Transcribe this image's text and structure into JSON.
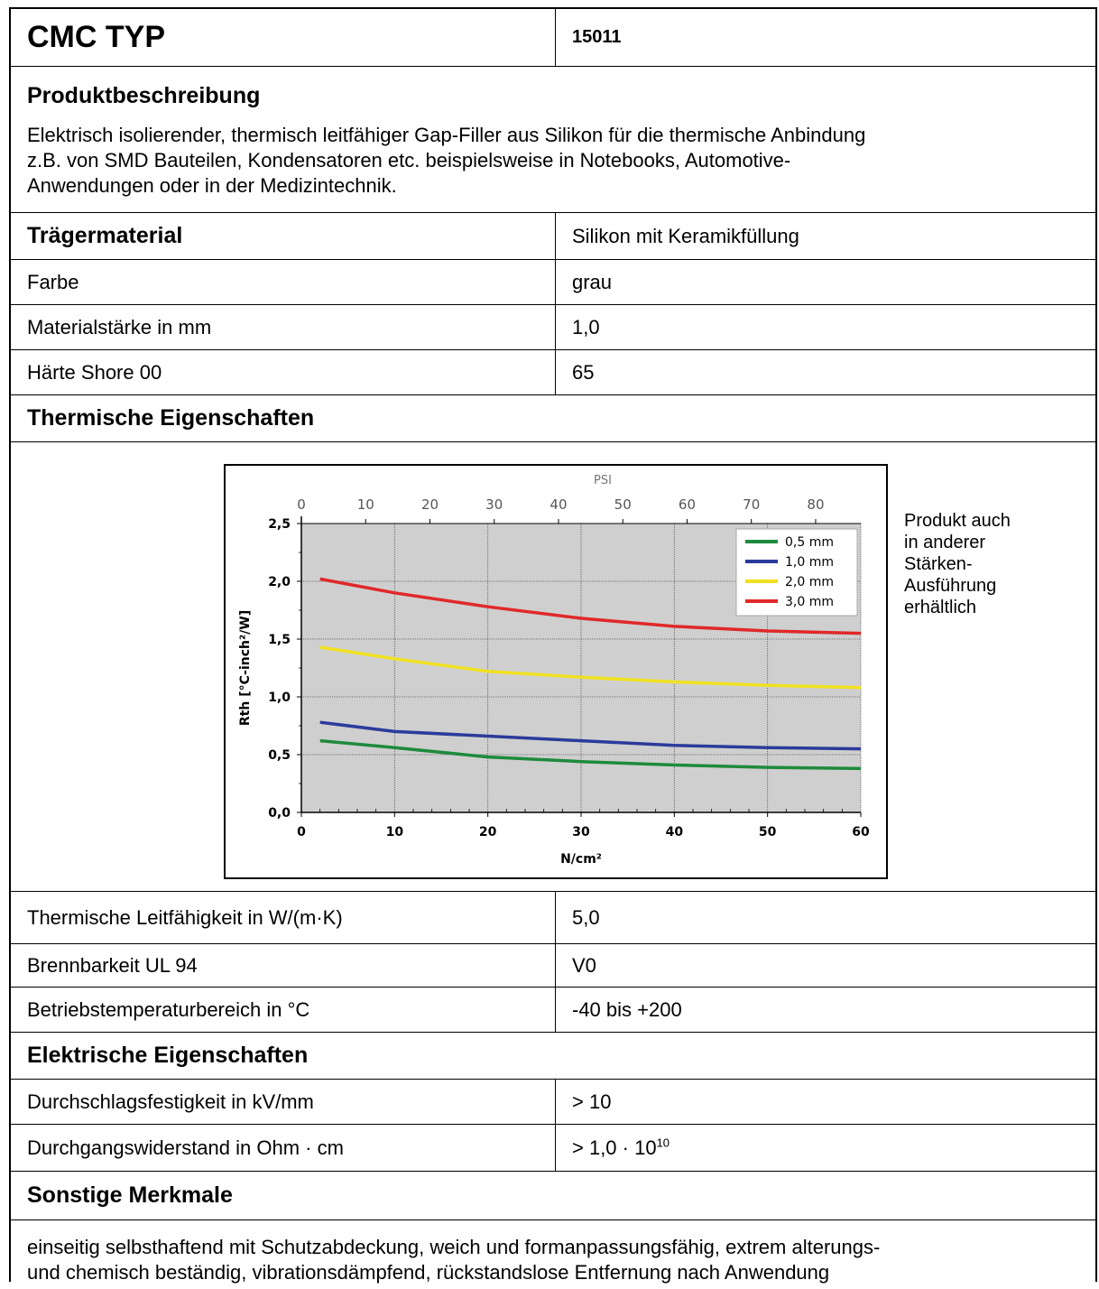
{
  "header": {
    "title": "CMC TYP",
    "code": "15011"
  },
  "product": {
    "heading": "Produktbeschreibung",
    "lines": [
      "Elektrisch isolierender, thermisch leitfähiger Gap-Filler aus Silikon für die thermische Anbindung",
      "z.B. von SMD Bauteilen, Kondensatoren etc. beispielsweise in Notebooks, Automotive-",
      "Anwendungen oder in der Medizintechnik."
    ]
  },
  "carrier": {
    "label": "Trägermaterial",
    "value": "Silikon mit Keramikfüllung"
  },
  "basic_props": [
    {
      "label": "Farbe",
      "value": "grau"
    },
    {
      "label": "Materialstärke in mm",
      "value": "1,0"
    },
    {
      "label": "Härte Shore 00",
      "value": "65"
    }
  ],
  "thermal": {
    "heading": "Thermische Eigenschaften",
    "note_lines": [
      "Produkt auch",
      "in anderer",
      "Stärken-",
      "Ausführung",
      "erhältlich"
    ],
    "props": [
      {
        "label": "Thermische Leitfähigkeit in W/(m·K)",
        "value": "5,0"
      },
      {
        "label": "Brennbarkeit UL 94",
        "value": "V0"
      },
      {
        "label": "Betriebstemperaturbereich in °C",
        "value": "-40 bis +200"
      }
    ]
  },
  "electrical": {
    "heading": "Elektrische Eigenschaften",
    "props": [
      {
        "label": "Durchschlagsfestigkeit in kV/mm",
        "value": "> 10"
      },
      {
        "label": "Durchgangswiderstand in Ohm · cm",
        "value": "> 1,0 · 10",
        "value_sup": "10"
      }
    ]
  },
  "other": {
    "heading": "Sonstige Merkmale",
    "lines": [
      "einseitig selbsthaftend mit Schutzabdeckung, weich und formanpassungsfähig, extrem alterungs-",
      "und chemisch beständig, vibrationsdämpfend, rückstandslose Entfernung nach Anwendung"
    ]
  },
  "chart_data": {
    "type": "line",
    "xlabel": "N/cm²",
    "x2label": "PSI",
    "ylabel": "Rth [°C-inch²/W]",
    "xlim": [
      0,
      60
    ],
    "ylim": [
      0,
      2.5
    ],
    "x_ticks": [
      "0",
      "10",
      "20",
      "30",
      "40",
      "50",
      "60"
    ],
    "x_tick_values": [
      0,
      10,
      20,
      30,
      40,
      50,
      60
    ],
    "x2_ticks": [
      "0",
      "10",
      "20",
      "30",
      "40",
      "50",
      "60",
      "70",
      "80"
    ],
    "x2_tick_values": [
      0,
      10,
      20,
      30,
      40,
      50,
      60,
      70,
      80
    ],
    "x2_per_x": 1.4504,
    "y_ticks": [
      "0,0",
      "0,5",
      "1,0",
      "1,5",
      "2,0",
      "2,5"
    ],
    "y_tick_values": [
      0,
      0.5,
      1.0,
      1.5,
      2.0,
      2.5
    ],
    "grid": true,
    "legend": "top-right",
    "series": [
      {
        "name": "0,5 mm",
        "color": "#1e8a3c",
        "x": [
          2,
          10,
          20,
          30,
          40,
          50,
          60
        ],
        "y": [
          0.62,
          0.56,
          0.48,
          0.44,
          0.41,
          0.39,
          0.38
        ]
      },
      {
        "name": "1,0 mm",
        "color": "#2b3b9b",
        "x": [
          2,
          10,
          20,
          30,
          40,
          50,
          60
        ],
        "y": [
          0.78,
          0.7,
          0.66,
          0.62,
          0.58,
          0.56,
          0.55
        ]
      },
      {
        "name": "2,0 mm",
        "color": "#f0e020",
        "x": [
          2,
          10,
          20,
          30,
          40,
          50,
          60
        ],
        "y": [
          1.43,
          1.33,
          1.22,
          1.17,
          1.13,
          1.1,
          1.08
        ]
      },
      {
        "name": "3,0 mm",
        "color": "#e0282a",
        "x": [
          2,
          10,
          20,
          30,
          40,
          50,
          60
        ],
        "y": [
          2.02,
          1.9,
          1.78,
          1.68,
          1.61,
          1.57,
          1.55
        ]
      }
    ]
  }
}
